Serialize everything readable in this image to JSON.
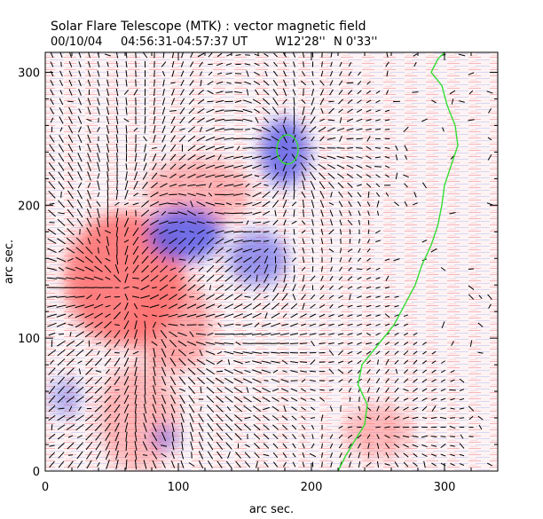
{
  "chart_data": {
    "type": "heatmap",
    "title": "Solar Flare Telescope (MTK) : vector magnetic field",
    "subtitle_date": "00/10/04",
    "subtitle_time": "04:56:31-04:57:37 UT",
    "subtitle_lon": "W12'28''",
    "subtitle_lat": "N 0'33''",
    "xlabel": "arc sec.",
    "ylabel": "arc sec.",
    "xlim": [
      0,
      340
    ],
    "ylim": [
      0,
      315
    ],
    "xticks": [
      0,
      100,
      200,
      300
    ],
    "yticks": [
      0,
      100,
      200,
      300
    ],
    "grid": false,
    "colors": {
      "positive": "#ff6b6b",
      "negative": "#5a5ae6",
      "neutral_line": "#33dd33",
      "vector": "#000000"
    },
    "blobs": [
      {
        "polarity": "positive",
        "x": 60,
        "y": 145,
        "rx": 45,
        "ry": 50,
        "strength": 1.0
      },
      {
        "polarity": "positive",
        "x": 95,
        "y": 110,
        "rx": 30,
        "ry": 35,
        "strength": 0.5
      },
      {
        "polarity": "positive",
        "x": 115,
        "y": 210,
        "rx": 40,
        "ry": 25,
        "strength": 0.35
      },
      {
        "polarity": "positive",
        "x": 70,
        "y": 40,
        "rx": 30,
        "ry": 40,
        "strength": 0.3
      },
      {
        "polarity": "positive",
        "x": 250,
        "y": 30,
        "rx": 25,
        "ry": 20,
        "strength": 0.3
      },
      {
        "polarity": "negative",
        "x": 105,
        "y": 178,
        "rx": 28,
        "ry": 20,
        "strength": 1.0
      },
      {
        "polarity": "negative",
        "x": 180,
        "y": 240,
        "rx": 18,
        "ry": 25,
        "strength": 0.95
      },
      {
        "polarity": "negative",
        "x": 160,
        "y": 160,
        "rx": 22,
        "ry": 20,
        "strength": 0.6
      },
      {
        "polarity": "negative",
        "x": 90,
        "y": 25,
        "rx": 10,
        "ry": 8,
        "strength": 0.6
      },
      {
        "polarity": "negative",
        "x": 15,
        "y": 55,
        "rx": 12,
        "ry": 15,
        "strength": 0.3
      }
    ],
    "neutral_line": [
      [
        220,
        0
      ],
      [
        226,
        12
      ],
      [
        232,
        22
      ],
      [
        240,
        35
      ],
      [
        242,
        50
      ],
      [
        235,
        65
      ],
      [
        238,
        80
      ],
      [
        250,
        95
      ],
      [
        262,
        110
      ],
      [
        270,
        125
      ],
      [
        278,
        140
      ],
      [
        283,
        155
      ],
      [
        290,
        170
      ],
      [
        295,
        185
      ],
      [
        298,
        200
      ],
      [
        300,
        215
      ],
      [
        305,
        230
      ],
      [
        310,
        245
      ],
      [
        308,
        260
      ],
      [
        302,
        275
      ],
      [
        298,
        290
      ],
      [
        290,
        300
      ],
      [
        295,
        310
      ],
      [
        300,
        315
      ]
    ],
    "neutral_loop": {
      "x": 182,
      "y": 242,
      "rx": 8,
      "ry": 11
    }
  }
}
